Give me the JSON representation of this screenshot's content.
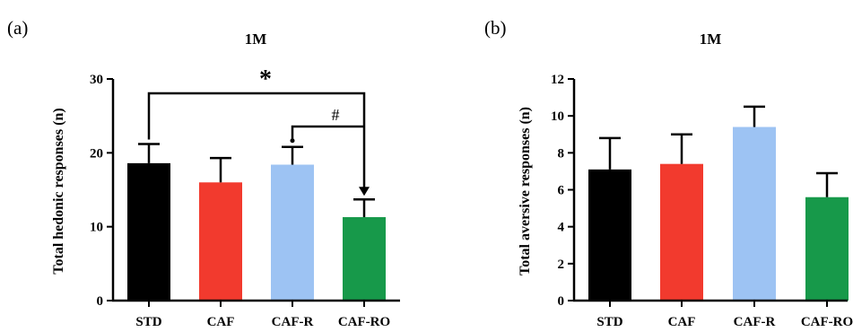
{
  "chart_data": [
    {
      "type": "bar",
      "panel_label": "(a)",
      "title": "1M",
      "xlabel": "",
      "ylabel": "Total hedonic responses (n)",
      "ylim": [
        0,
        30
      ],
      "yticks": [
        "0",
        "10",
        "20",
        "30"
      ],
      "categories": [
        "STD",
        "CAF",
        "CAF-R",
        "CAF-RO"
      ],
      "values": [
        18.6,
        16.0,
        18.4,
        11.3
      ],
      "errors": [
        2.6,
        3.3,
        2.4,
        2.4
      ],
      "colors": [
        "#000000",
        "#f23a2e",
        "#9dc3f3",
        "#17994a"
      ],
      "annotations": [
        {
          "label": "*",
          "from": "STD",
          "to": "CAF-RO"
        },
        {
          "label": "#",
          "from": "CAF-R",
          "to": "CAF-RO"
        }
      ]
    },
    {
      "type": "bar",
      "panel_label": "(b)",
      "title": "1M",
      "xlabel": "",
      "ylabel": "Total aversive responses (n)",
      "ylim": [
        0,
        12
      ],
      "yticks": [
        "0",
        "2",
        "4",
        "6",
        "8",
        "10",
        "12"
      ],
      "categories": [
        "STD",
        "CAF",
        "CAF-R",
        "CAF-RO"
      ],
      "values": [
        7.1,
        7.4,
        9.4,
        5.6
      ],
      "errors": [
        1.7,
        1.6,
        1.1,
        1.3
      ],
      "colors": [
        "#000000",
        "#f23a2e",
        "#9dc3f3",
        "#17994a"
      ]
    }
  ]
}
